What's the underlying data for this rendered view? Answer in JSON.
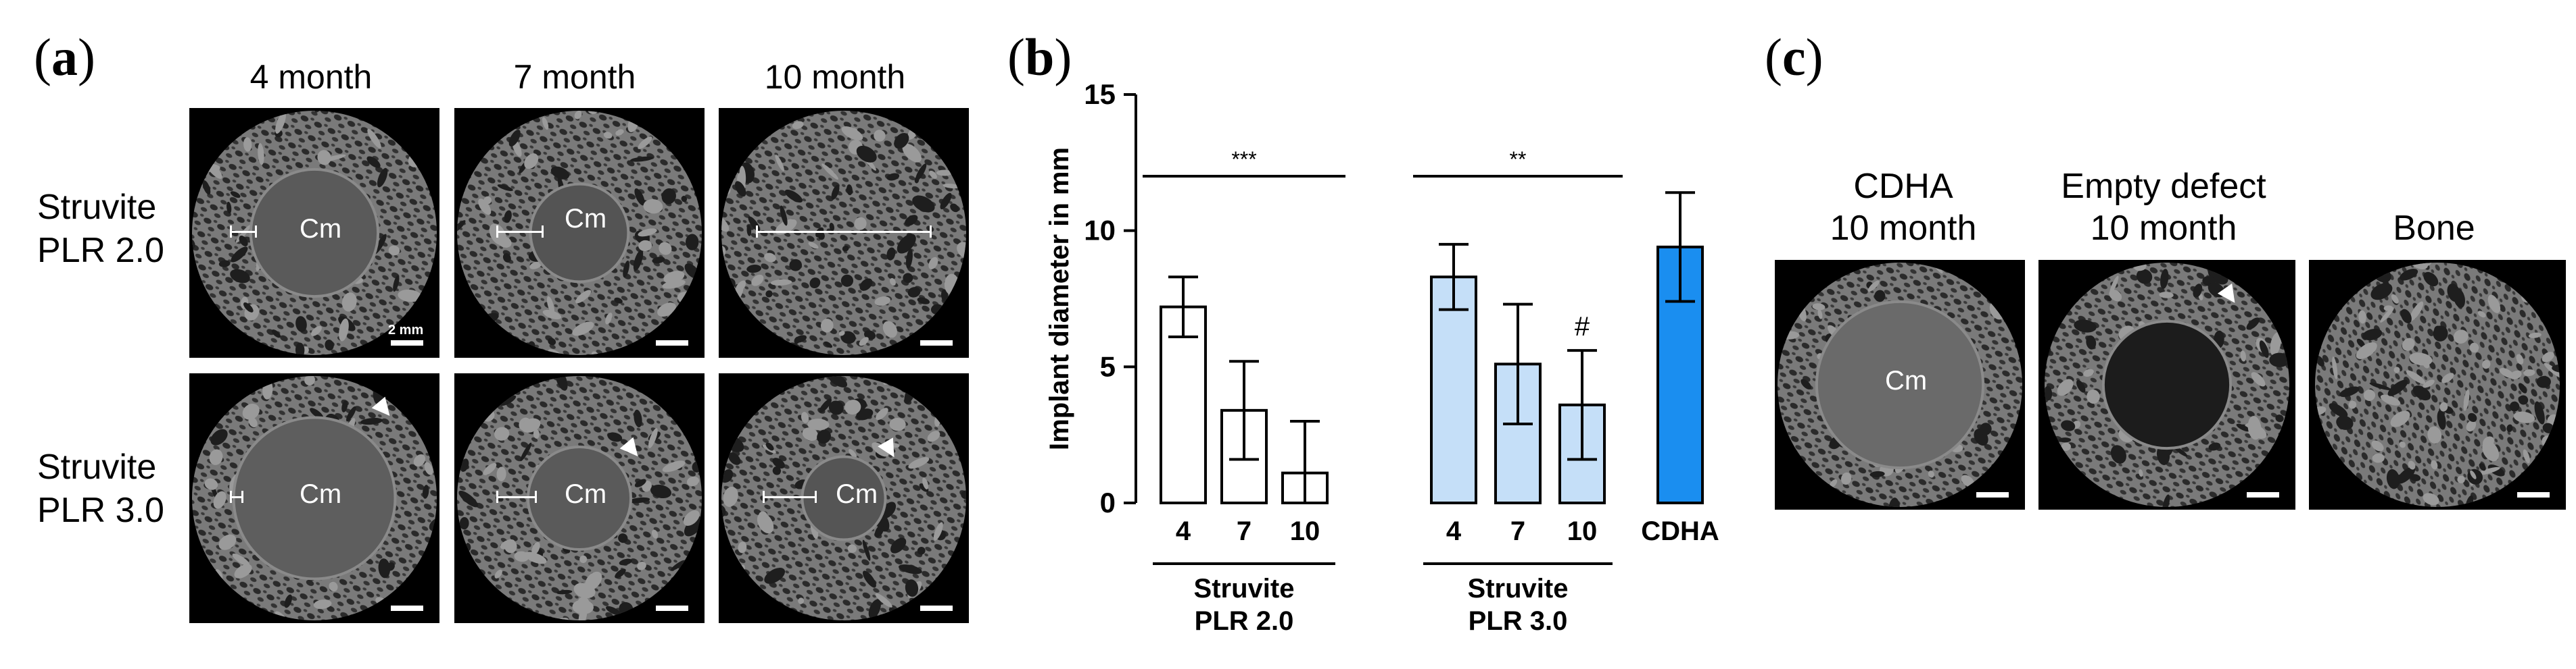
{
  "panels": {
    "a": {
      "label": "a",
      "columns": [
        "4 month",
        "7 month",
        "10 month"
      ],
      "rows": [
        {
          "line1": "Struvite",
          "line2": "PLR 2.0"
        },
        {
          "line1": "Struvite",
          "line2": "PLR 3.0"
        }
      ],
      "scale_text": "2 mm",
      "cm_label": "Cm"
    },
    "b": {
      "label": "b"
    },
    "c": {
      "label": "c",
      "titles": [
        {
          "line1": "CDHA",
          "line2": "10 month"
        },
        {
          "line1": "Empty defect",
          "line2": "10 month"
        },
        {
          "line1": "Bone",
          "line2": ""
        }
      ],
      "cm_label": "Cm"
    }
  },
  "chart_data": {
    "type": "bar",
    "ylabel": "Implant diameter in mm",
    "ylim": [
      0,
      15
    ],
    "yticks": [
      "0",
      "5",
      "10",
      "15"
    ],
    "categories": [
      "4",
      "7",
      "10",
      "4",
      "7",
      "10",
      "CDHA"
    ],
    "values": [
      7.2,
      3.4,
      1.1,
      8.3,
      5.1,
      3.6,
      9.4
    ],
    "errors": [
      1.1,
      1.8,
      1.9,
      1.2,
      2.2,
      2.0,
      2.0
    ],
    "colors": [
      "#ffffff",
      "#ffffff",
      "#ffffff",
      "#c5dff8",
      "#c5dff8",
      "#c5dff8",
      "#1a8ef0"
    ],
    "groups": [
      {
        "line1": "Struvite",
        "line2": "PLR 2.0"
      },
      {
        "line1": "Struvite",
        "line2": "PLR 3.0"
      }
    ],
    "significance": [
      "***",
      "**"
    ],
    "annotation": "#"
  }
}
